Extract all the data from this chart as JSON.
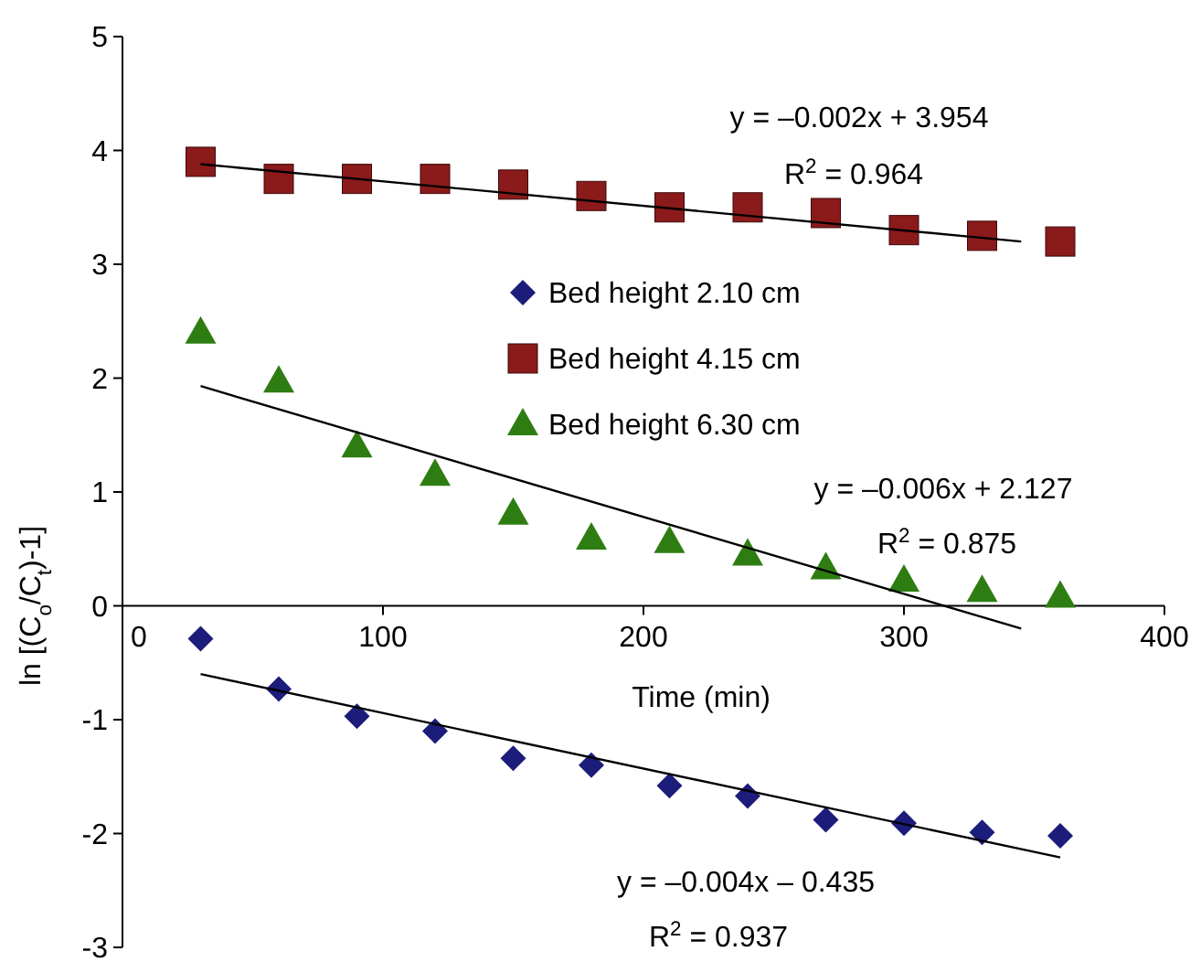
{
  "chart_data": {
    "type": "scatter",
    "xlabel": "Time (min)",
    "ylabel": "ln [(C$_{o}$/C$_{t}$)-1]",
    "xlim": [
      0,
      400
    ],
    "xticks": [
      0,
      100,
      200,
      300,
      400
    ],
    "ylim": [
      -3,
      5
    ],
    "yticks": [
      -3,
      -2,
      -1,
      0,
      1,
      2,
      3,
      4,
      5
    ],
    "grid": false,
    "legend": "center",
    "series": [
      {
        "name": "Bed height 2.10 cm",
        "color": "#1c1c7a",
        "marker": "diamond",
        "x": [
          30,
          60,
          90,
          120,
          150,
          180,
          210,
          240,
          270,
          300,
          330,
          360
        ],
        "values": [
          -0.29,
          -0.73,
          -0.97,
          -1.1,
          -1.34,
          -1.4,
          -1.58,
          -1.67,
          -1.88,
          -1.91,
          -1.99,
          -2.02
        ]
      },
      {
        "name": "Bed height 4.15 cm",
        "color": "#8b1a1a",
        "marker": "square",
        "x": [
          30,
          60,
          90,
          120,
          150,
          180,
          210,
          240,
          270,
          300,
          330,
          360
        ],
        "values": [
          3.9,
          3.75,
          3.75,
          3.75,
          3.7,
          3.6,
          3.5,
          3.5,
          3.45,
          3.3,
          3.25,
          3.2
        ]
      },
      {
        "name": "Bed height 6.30 cm",
        "color": "#2e7d12",
        "marker": "triangle",
        "x": [
          30,
          60,
          90,
          120,
          150,
          180,
          210,
          240,
          270,
          300,
          330,
          360
        ],
        "values": [
          2.4,
          1.97,
          1.4,
          1.15,
          0.81,
          0.59,
          0.56,
          0.45,
          0.33,
          0.22,
          0.13,
          0.08
        ]
      },
      {
        "type": "line",
        "color": "#000000",
        "marker": "none",
        "x": [
          30,
          360
        ],
        "values": [
          -0.6,
          -2.21
        ]
      },
      {
        "type": "line",
        "color": "#000000",
        "marker": "none",
        "x": [
          30,
          345
        ],
        "values": [
          3.88,
          3.2
        ]
      },
      {
        "type": "line",
        "color": "#000000",
        "marker": "none",
        "x": [
          30,
          345
        ],
        "values": [
          1.93,
          -0.2
        ]
      }
    ],
    "annotations": [
      "y = –0.002x + 3.954",
      "R$^{2}$ = 0.964",
      "y = –0.006x + 2.127",
      "R$^{2}$ = 0.875",
      "y = –0.004x – 0.435",
      "R$^{2}$ = 0.937"
    ]
  }
}
